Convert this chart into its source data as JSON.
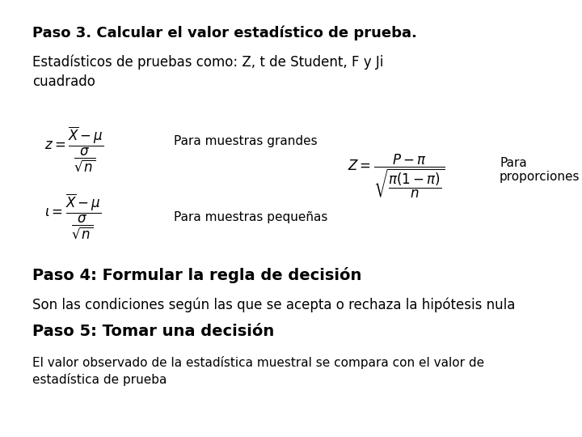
{
  "background_color": "#ffffff",
  "title1": "Paso 3. Calcular el valor estadístico de prueba.",
  "title1_fontsize": 13,
  "text1": "Estadísticos de pruebas como: Z, t de Student, F y Ji\ncuadrado",
  "text1_fontsize": 12,
  "formula_z": "$z = \\dfrac{\\overline{X} - \\mu}{\\dfrac{\\sigma}{\\sqrt{n}}}$",
  "formula_t": "$\\iota = \\dfrac{\\overline{X} - \\mu}{\\dfrac{\\sigma}{\\sqrt{n}}}$",
  "formula_Z2": "$Z = \\dfrac{P - \\pi}{\\sqrt{\\dfrac{\\pi(1-\\pi)}{n}}}$",
  "label_grandes": "Para muestras grandes",
  "label_pequenas": "Para muestras pequeñas",
  "label_proporciones": "Para\nproporciones",
  "formula_fontsize": 12,
  "label_fontsize": 11,
  "title4": "Paso 4: Formular la regla de decisión",
  "title4_fontsize": 14,
  "text4": "Son las condiciones según las que se acepta o rechaza la hipótesis nula",
  "text4_fontsize": 12,
  "title5": "Paso 5: Tomar una decisión",
  "title5_fontsize": 14,
  "text5": "El valor observado de la estadística muestral se compara con el valor de\nestadística de prueba",
  "text5_fontsize": 11
}
